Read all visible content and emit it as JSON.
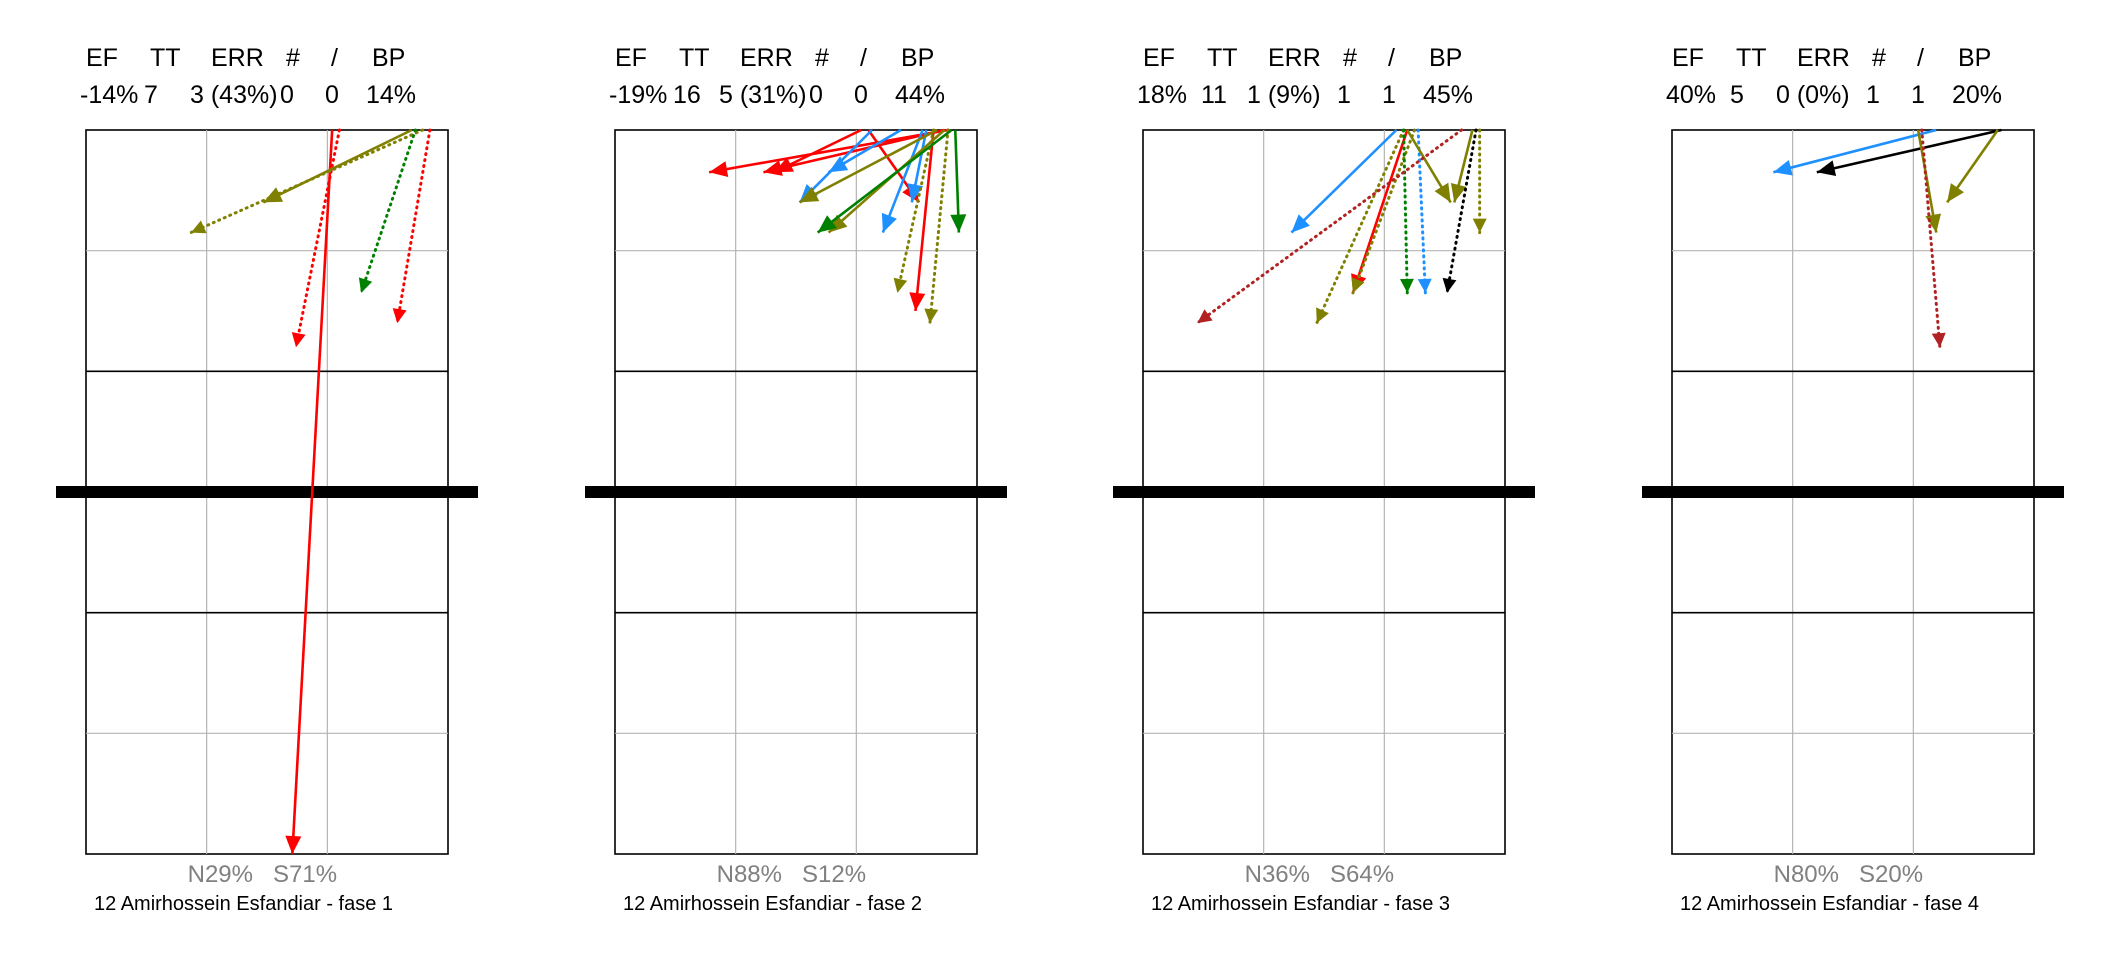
{
  "chart_data": [
    {
      "type": "line",
      "caption": "12 Amirhossein Esfandiar  - fase 1",
      "stats": {
        "headers": [
          "EF",
          "TT",
          "ERR",
          "#",
          "/",
          "BP"
        ],
        "values": [
          "-14%",
          "7",
          "3 (43%)",
          "0",
          "0",
          "14%"
        ]
      },
      "distribution": {
        "left": "N29%",
        "right": "S71%"
      },
      "colors": {
        "red": "#ff0000",
        "olive": "#808000",
        "green": "#008000",
        "blue": "#1e90ff",
        "black": "#000000",
        "darkred": "#b22222"
      },
      "arrows": [
        {
          "start": [
            0.68,
            6.0
          ],
          "end": [
            0.57,
            0.0
          ],
          "color": "red",
          "dashed": false
        },
        {
          "start": [
            0.7,
            6.0
          ],
          "end": [
            0.58,
            4.2
          ],
          "color": "red",
          "dashed": true
        },
        {
          "start": [
            0.9,
            6.0
          ],
          "end": [
            0.49,
            5.4
          ],
          "color": "olive",
          "dashed": false
        },
        {
          "start": [
            0.93,
            6.0
          ],
          "end": [
            0.29,
            5.15
          ],
          "color": "olive",
          "dashed": true
        },
        {
          "start": [
            0.91,
            6.0
          ],
          "end": [
            0.76,
            4.65
          ],
          "color": "green",
          "dashed": true
        },
        {
          "start": [
            0.95,
            6.0
          ],
          "end": [
            0.86,
            4.4
          ],
          "color": "red",
          "dashed": true
        }
      ]
    },
    {
      "type": "line",
      "caption": "12 Amirhossein Esfandiar  - fase 2",
      "stats": {
        "headers": [
          "EF",
          "TT",
          "ERR",
          "#",
          "/",
          "BP"
        ],
        "values": [
          "-19%",
          "16",
          "5 (31%)",
          "0",
          "0",
          "44%"
        ]
      },
      "distribution": {
        "left": "N88%",
        "right": "S12%"
      },
      "colors": {
        "red": "#ff0000",
        "olive": "#808000",
        "green": "#008000",
        "blue": "#1e90ff",
        "black": "#000000",
        "darkred": "#b22222"
      },
      "arrows": [
        {
          "start": [
            0.92,
            6.0
          ],
          "end": [
            0.26,
            5.65
          ],
          "color": "red",
          "dashed": false
        },
        {
          "start": [
            0.91,
            6.0
          ],
          "end": [
            0.41,
            5.65
          ],
          "color": "red",
          "dashed": false
        },
        {
          "start": [
            0.68,
            6.0
          ],
          "end": [
            0.44,
            5.65
          ],
          "color": "red",
          "dashed": false
        },
        {
          "start": [
            0.7,
            6.0
          ],
          "end": [
            0.84,
            5.4
          ],
          "color": "red",
          "dashed": false
        },
        {
          "start": [
            0.88,
            6.0
          ],
          "end": [
            0.83,
            4.5
          ],
          "color": "red",
          "dashed": false
        },
        {
          "start": [
            0.71,
            6.0
          ],
          "end": [
            0.51,
            5.4
          ],
          "color": "blue",
          "dashed": false
        },
        {
          "start": [
            0.79,
            6.0
          ],
          "end": [
            0.59,
            5.65
          ],
          "color": "blue",
          "dashed": false
        },
        {
          "start": [
            0.85,
            6.0
          ],
          "end": [
            0.74,
            5.15
          ],
          "color": "blue",
          "dashed": false
        },
        {
          "start": [
            0.86,
            6.0
          ],
          "end": [
            0.82,
            5.4
          ],
          "color": "blue",
          "dashed": false
        },
        {
          "start": [
            0.89,
            6.0
          ],
          "end": [
            0.51,
            5.4
          ],
          "color": "olive",
          "dashed": false
        },
        {
          "start": [
            0.91,
            6.0
          ],
          "end": [
            0.59,
            5.15
          ],
          "color": "olive",
          "dashed": false
        },
        {
          "start": [
            0.88,
            6.0
          ],
          "end": [
            0.78,
            4.65
          ],
          "color": "olive",
          "dashed": true
        },
        {
          "start": [
            0.92,
            6.0
          ],
          "end": [
            0.87,
            4.4
          ],
          "color": "olive",
          "dashed": true
        },
        {
          "start": [
            0.93,
            6.0
          ],
          "end": [
            0.56,
            5.15
          ],
          "color": "green",
          "dashed": false
        },
        {
          "start": [
            0.94,
            6.0
          ],
          "end": [
            0.95,
            5.15
          ],
          "color": "green",
          "dashed": false
        }
      ]
    },
    {
      "type": "line",
      "caption": "12 Amirhossein Esfandiar  - fase 3",
      "stats": {
        "headers": [
          "EF",
          "TT",
          "ERR",
          "#",
          "/",
          "BP"
        ],
        "values": [
          "18%",
          "11",
          "1 (9%)",
          "1",
          "1",
          "45%"
        ]
      },
      "distribution": {
        "left": "N36%",
        "right": "S64%"
      },
      "colors": {
        "red": "#ff0000",
        "olive": "#808000",
        "green": "#008000",
        "blue": "#1e90ff",
        "black": "#000000",
        "darkred": "#b22222"
      },
      "arrows": [
        {
          "start": [
            0.7,
            6.0
          ],
          "end": [
            0.41,
            5.15
          ],
          "color": "blue",
          "dashed": false
        },
        {
          "start": [
            0.73,
            6.0
          ],
          "end": [
            0.58,
            4.65
          ],
          "color": "red",
          "dashed": false
        },
        {
          "start": [
            0.75,
            6.0
          ],
          "end": [
            0.58,
            4.65
          ],
          "color": "olive",
          "dashed": true
        },
        {
          "start": [
            0.72,
            6.0
          ],
          "end": [
            0.48,
            4.4
          ],
          "color": "olive",
          "dashed": true
        },
        {
          "start": [
            0.72,
            6.0
          ],
          "end": [
            0.73,
            4.65
          ],
          "color": "green",
          "dashed": true
        },
        {
          "start": [
            0.76,
            6.0
          ],
          "end": [
            0.78,
            4.65
          ],
          "color": "blue",
          "dashed": true
        },
        {
          "start": [
            0.73,
            6.0
          ],
          "end": [
            0.85,
            5.4
          ],
          "color": "olive",
          "dashed": false
        },
        {
          "start": [
            0.91,
            6.0
          ],
          "end": [
            0.86,
            5.4
          ],
          "color": "olive",
          "dashed": false
        },
        {
          "start": [
            0.93,
            6.0
          ],
          "end": [
            0.93,
            5.15
          ],
          "color": "olive",
          "dashed": true
        },
        {
          "start": [
            0.88,
            6.0
          ],
          "end": [
            0.15,
            4.4
          ],
          "color": "darkred",
          "dashed": true
        },
        {
          "start": [
            0.92,
            6.0
          ],
          "end": [
            0.84,
            4.65
          ],
          "color": "black",
          "dashed": true
        }
      ]
    },
    {
      "type": "line",
      "caption": "12 Amirhossein Esfandiar  - fase 4",
      "stats": {
        "headers": [
          "EF",
          "TT",
          "ERR",
          "#",
          "/",
          "BP"
        ],
        "values": [
          "40%",
          "5",
          "0 (0%)",
          "1",
          "1",
          "20%"
        ]
      },
      "distribution": {
        "left": "N80%",
        "right": "S20%"
      },
      "colors": {
        "red": "#ff0000",
        "olive": "#808000",
        "green": "#008000",
        "blue": "#1e90ff",
        "black": "#000000",
        "darkred": "#b22222"
      },
      "arrows": [
        {
          "start": [
            0.73,
            6.0
          ],
          "end": [
            0.28,
            5.65
          ],
          "color": "blue",
          "dashed": false
        },
        {
          "start": [
            0.91,
            6.0
          ],
          "end": [
            0.4,
            5.65
          ],
          "color": "black",
          "dashed": false
        },
        {
          "start": [
            0.9,
            6.0
          ],
          "end": [
            0.76,
            5.4
          ],
          "color": "olive",
          "dashed": false
        },
        {
          "start": [
            0.68,
            6.0
          ],
          "end": [
            0.73,
            5.15
          ],
          "color": "olive",
          "dashed": false
        },
        {
          "start": [
            0.69,
            6.0
          ],
          "end": [
            0.74,
            4.2
          ],
          "color": "darkred",
          "dashed": true
        }
      ]
    }
  ]
}
